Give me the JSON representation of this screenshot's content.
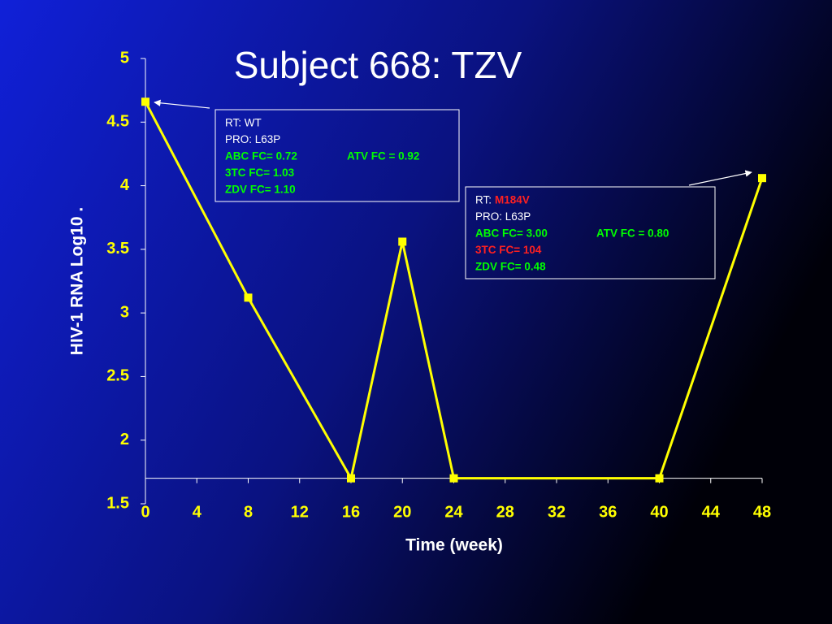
{
  "chart_data": {
    "type": "line",
    "title": "Subject 668:  TZV",
    "x_label": "Time (week)",
    "y_label": "HIV-1 RNA Log10 .",
    "x": [
      0,
      8,
      16,
      20,
      24,
      40,
      48
    ],
    "values": [
      4.66,
      3.12,
      1.7,
      3.56,
      1.7,
      1.7,
      4.06
    ],
    "color": "#ffff00",
    "xlim": [
      0,
      48
    ],
    "xticks": [
      0,
      4,
      8,
      12,
      16,
      20,
      24,
      28,
      32,
      36,
      40,
      44,
      48
    ],
    "ylim": [
      1.5,
      5
    ],
    "yticks": [
      1.5,
      2,
      2.5,
      3,
      3.5,
      4,
      4.5,
      5
    ],
    "x_axis_crosses_y": 1.7,
    "annotations": [
      {
        "lines": [
          [
            {
              "text": "RT: WT",
              "color": "#ffffff"
            }
          ],
          [
            {
              "text": "PRO: L63P",
              "color": "#ffffff"
            }
          ],
          [
            {
              "text": "ABC FC=  0.72",
              "color": "#00ff00"
            },
            {
              "text": "ATV  FC =  0.92",
              "color": "#00ff00"
            }
          ],
          [
            {
              "text": "3TC  FC=  1.03",
              "color": "#00ff00"
            }
          ],
          [
            {
              "text": "ZDV  FC=  1.10",
              "color": "#00ff00"
            }
          ]
        ]
      },
      {
        "lines": [
          [
            {
              "text": "RT:",
              "color": "#ffffff"
            },
            {
              "text": "M184V",
              "color": "#ff2020"
            }
          ],
          [
            {
              "text": "PRO: L63P",
              "color": "#ffffff"
            }
          ],
          [
            {
              "text": "ABC  FC= 3.00",
              "color": "#00ff00"
            },
            {
              "text": "ATV  FC = 0.80",
              "color": "#00ff00"
            }
          ],
          [
            {
              "text": "3TC  FC= 104",
              "color": "#ff2020"
            }
          ],
          [
            {
              "text": "ZDV  FC=  0.48",
              "color": "#00ff00"
            }
          ]
        ]
      }
    ]
  }
}
